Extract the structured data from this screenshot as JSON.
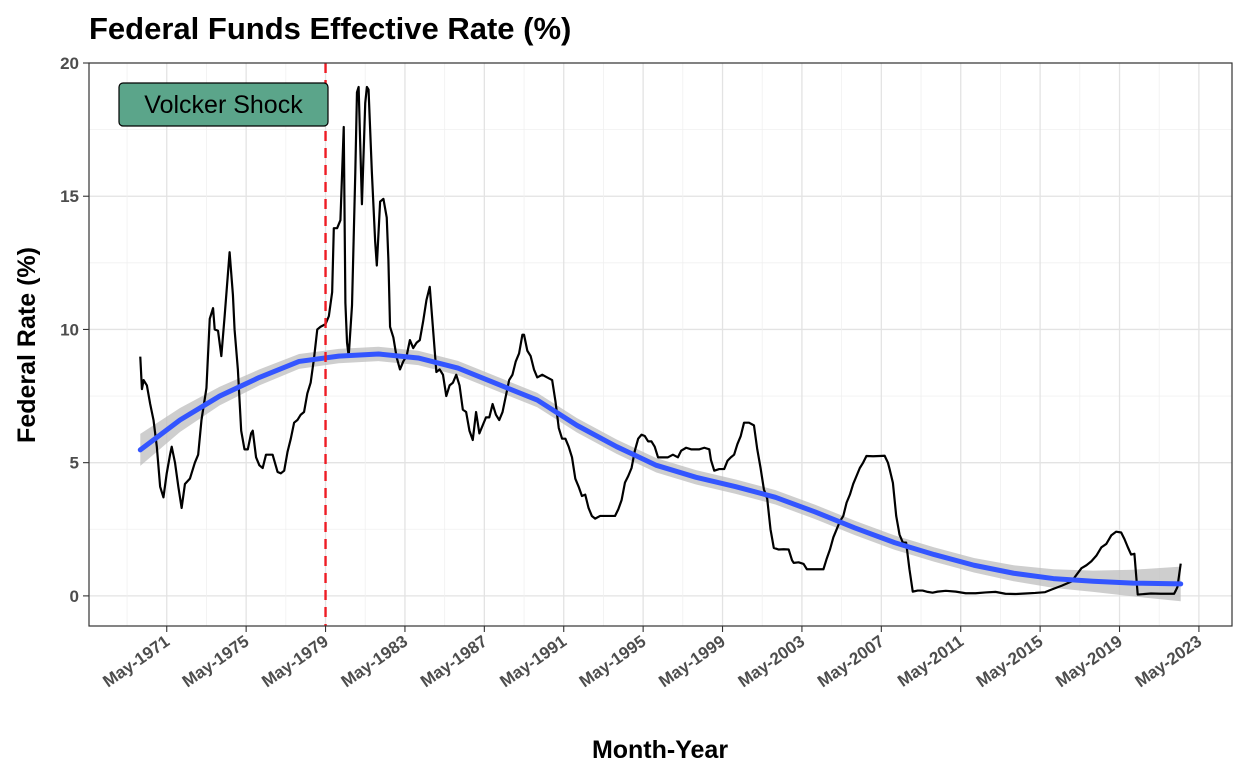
{
  "chart_data": {
    "type": "line",
    "title": "Federal Funds Effective Rate (%)",
    "x_label": "Month-Year",
    "y_label": "Federal Rate (%)",
    "xlim": [
      "1967-06",
      "2025-01"
    ],
    "xticks": [
      {
        "value": "1971-05",
        "label": "May-1971"
      },
      {
        "value": "1975-05",
        "label": "May-1975"
      },
      {
        "value": "1979-05",
        "label": "May-1979"
      },
      {
        "value": "1983-05",
        "label": "May-1983"
      },
      {
        "value": "1987-05",
        "label": "May-1987"
      },
      {
        "value": "1991-05",
        "label": "May-1991"
      },
      {
        "value": "1995-05",
        "label": "May-1995"
      },
      {
        "value": "1999-05",
        "label": "May-1999"
      },
      {
        "value": "2003-05",
        "label": "May-2003"
      },
      {
        "value": "2007-05",
        "label": "May-2007"
      },
      {
        "value": "2011-05",
        "label": "May-2011"
      },
      {
        "value": "2015-05",
        "label": "May-2015"
      },
      {
        "value": "2019-05",
        "label": "May-2019"
      },
      {
        "value": "2023-05",
        "label": "May-2023"
      }
    ],
    "ylim": [
      -1.13,
      20
    ],
    "yticks": [
      0,
      5,
      10,
      15,
      20
    ],
    "grid": true,
    "line": {
      "color": "#000000",
      "x": [
        "1970-01",
        "1970-02",
        "1970-03",
        "1970-05",
        "1970-07",
        "1970-09",
        "1970-11",
        "1971-01",
        "1971-03",
        "1971-05",
        "1971-07",
        "1971-08",
        "1971-10",
        "1971-12",
        "1972-02",
        "1972-04",
        "1972-07",
        "1972-10",
        "1972-12",
        "1973-02",
        "1973-05",
        "1973-07",
        "1973-09",
        "1973-10",
        "1973-12",
        "1974-02",
        "1974-04",
        "1974-07",
        "1974-09",
        "1974-10",
        "1974-12",
        "1975-02",
        "1975-04",
        "1975-06",
        "1975-08",
        "1975-09",
        "1975-11",
        "1976-01",
        "1976-03",
        "1976-05",
        "1976-07",
        "1976-09",
        "1976-12",
        "1977-02",
        "1977-04",
        "1977-06",
        "1977-08",
        "1977-10",
        "1977-12",
        "1978-02",
        "1978-04",
        "1978-06",
        "1978-08",
        "1978-10",
        "1978-12",
        "1979-02",
        "1979-05",
        "1979-07",
        "1979-09",
        "1979-10",
        "1979-12",
        "1980-02",
        "1980-04",
        "1980-05",
        "1980-06",
        "1980-07",
        "1980-09",
        "1980-11",
        "1980-12",
        "1981-01",
        "1981-03",
        "1981-05",
        "1981-06",
        "1981-07",
        "1981-09",
        "1981-11",
        "1981-12",
        "1982-02",
        "1982-04",
        "1982-06",
        "1982-07",
        "1982-08",
        "1982-10",
        "1982-12",
        "1983-02",
        "1983-04",
        "1983-06",
        "1983-08",
        "1983-10",
        "1983-12",
        "1984-02",
        "1984-04",
        "1984-06",
        "1984-08",
        "1984-10",
        "1984-12",
        "1985-02",
        "1985-04",
        "1985-06",
        "1985-08",
        "1985-10",
        "1985-12",
        "1986-02",
        "1986-04",
        "1986-06",
        "1986-08",
        "1986-10",
        "1986-12",
        "1987-02",
        "1987-04",
        "1987-06",
        "1987-08",
        "1987-10",
        "1987-12",
        "1988-02",
        "1988-04",
        "1988-06",
        "1988-08",
        "1988-10",
        "1988-12",
        "1989-02",
        "1989-04",
        "1989-05",
        "1989-07",
        "1989-09",
        "1989-11",
        "1990-01",
        "1990-04",
        "1990-07",
        "1990-10",
        "1990-12",
        "1991-02",
        "1991-04",
        "1991-06",
        "1991-08",
        "1991-10",
        "1991-12",
        "1992-02",
        "1992-04",
        "1992-06",
        "1992-08",
        "1992-10",
        "1992-12",
        "1993-03",
        "1993-06",
        "1993-09",
        "1993-12",
        "1994-02",
        "1994-04",
        "1994-06",
        "1994-08",
        "1994-10",
        "1994-12",
        "1995-02",
        "1995-04",
        "1995-06",
        "1995-08",
        "1995-10",
        "1995-12",
        "1996-02",
        "1996-05",
        "1996-08",
        "1996-11",
        "1997-02",
        "1997-04",
        "1997-07",
        "1997-10",
        "1997-12",
        "1998-03",
        "1998-06",
        "1998-09",
        "1998-10",
        "1998-12",
        "1999-03",
        "1999-06",
        "1999-08",
        "1999-10",
        "1999-12",
        "2000-02",
        "2000-04",
        "2000-06",
        "2000-09",
        "2000-12",
        "2001-02",
        "2001-04",
        "2001-06",
        "2001-08",
        "2001-10",
        "2001-12",
        "2002-03",
        "2002-06",
        "2002-09",
        "2002-11",
        "2002-12",
        "2003-03",
        "2003-06",
        "2003-08",
        "2003-12",
        "2004-03",
        "2004-06",
        "2004-08",
        "2004-10",
        "2004-12",
        "2005-02",
        "2005-04",
        "2005-06",
        "2005-08",
        "2005-10",
        "2005-12",
        "2006-02",
        "2006-04",
        "2006-06",
        "2006-08",
        "2006-12",
        "2007-04",
        "2007-07",
        "2007-09",
        "2007-10",
        "2007-12",
        "2008-02",
        "2008-04",
        "2008-06",
        "2008-08",
        "2008-10",
        "2008-12",
        "2009-03",
        "2009-06",
        "2009-09",
        "2009-12",
        "2010-03",
        "2010-08",
        "2011-02",
        "2011-08",
        "2012-02",
        "2012-08",
        "2013-02",
        "2013-08",
        "2014-02",
        "2014-08",
        "2015-02",
        "2015-08",
        "2015-12",
        "2016-06",
        "2016-12",
        "2017-03",
        "2017-06",
        "2017-09",
        "2017-12",
        "2018-03",
        "2018-06",
        "2018-09",
        "2018-12",
        "2019-03",
        "2019-06",
        "2019-08",
        "2019-10",
        "2019-12",
        "2020-02",
        "2020-04",
        "2020-12",
        "2021-06",
        "2021-12",
        "2022-02",
        "2022-03",
        "2022-04",
        "2022-05",
        "2022-06"
      ],
      "values": [
        8.98,
        7.76,
        8.1,
        7.9,
        7.2,
        6.6,
        5.6,
        4.1,
        3.7,
        4.6,
        5.3,
        5.6,
        5.0,
        4.1,
        3.3,
        4.2,
        4.4,
        5.0,
        5.3,
        6.6,
        7.8,
        10.4,
        10.8,
        10.0,
        9.95,
        9.0,
        10.5,
        12.9,
        11.3,
        10.0,
        8.5,
        6.2,
        5.5,
        5.5,
        6.1,
        6.2,
        5.2,
        4.9,
        4.8,
        5.3,
        5.3,
        5.3,
        4.65,
        4.6,
        4.7,
        5.4,
        5.9,
        6.5,
        6.6,
        6.8,
        6.9,
        7.6,
        8.0,
        8.9,
        10.0,
        10.1,
        10.2,
        10.5,
        11.4,
        13.8,
        13.8,
        14.1,
        17.6,
        11.0,
        9.5,
        9.0,
        10.9,
        15.9,
        18.9,
        19.1,
        14.7,
        18.5,
        19.1,
        19.0,
        15.9,
        13.3,
        12.4,
        14.8,
        14.9,
        14.2,
        12.6,
        10.1,
        9.7,
        8.95,
        8.5,
        8.8,
        9.0,
        9.6,
        9.3,
        9.5,
        9.6,
        10.3,
        11.1,
        11.6,
        10.0,
        8.4,
        8.5,
        8.3,
        7.5,
        7.9,
        8.0,
        8.3,
        7.9,
        6.99,
        6.9,
        6.2,
        5.85,
        6.9,
        6.1,
        6.4,
        6.7,
        6.7,
        7.2,
        6.8,
        6.6,
        6.9,
        7.5,
        8.1,
        8.3,
        8.8,
        9.1,
        9.8,
        9.8,
        9.2,
        9.0,
        8.5,
        8.2,
        8.3,
        8.2,
        8.1,
        7.3,
        6.3,
        5.9,
        5.9,
        5.6,
        5.2,
        4.4,
        4.1,
        3.75,
        3.8,
        3.3,
        3.0,
        2.9,
        3.0,
        3.0,
        3.0,
        3.0,
        3.25,
        3.6,
        4.25,
        4.5,
        4.8,
        5.45,
        5.9,
        6.05,
        6.0,
        5.8,
        5.8,
        5.6,
        5.2,
        5.2,
        5.2,
        5.3,
        5.2,
        5.45,
        5.56,
        5.5,
        5.5,
        5.5,
        5.56,
        5.5,
        5.1,
        4.7,
        4.76,
        4.76,
        5.07,
        5.2,
        5.3,
        5.7,
        6.0,
        6.5,
        6.5,
        6.4,
        5.5,
        4.8,
        4.0,
        3.65,
        2.5,
        1.8,
        1.74,
        1.75,
        1.74,
        1.34,
        1.24,
        1.26,
        1.2,
        1.0,
        1.0,
        1.0,
        1.0,
        1.4,
        1.75,
        2.2,
        2.5,
        2.8,
        3.0,
        3.5,
        3.8,
        4.2,
        4.5,
        4.8,
        5.0,
        5.25,
        5.24,
        5.25,
        5.26,
        5.0,
        4.76,
        4.24,
        3.0,
        2.3,
        2.0,
        2.0,
        1.0,
        0.16,
        0.2,
        0.2,
        0.15,
        0.12,
        0.16,
        0.19,
        0.16,
        0.1,
        0.1,
        0.13,
        0.15,
        0.08,
        0.07,
        0.09,
        0.11,
        0.14,
        0.24,
        0.38,
        0.54,
        0.79,
        1.04,
        1.15,
        1.3,
        1.51,
        1.82,
        1.95,
        2.27,
        2.41,
        2.38,
        2.13,
        1.83,
        1.55,
        1.58,
        0.05,
        0.09,
        0.08,
        0.08,
        0.08,
        0.2,
        0.33,
        0.77,
        1.21
      ]
    },
    "smooth": {
      "color": "#3355ff",
      "band_color": "#bdbdbd",
      "x": [
        "1970-01",
        "1972-01",
        "1974-01",
        "1976-01",
        "1978-01",
        "1980-01",
        "1982-01",
        "1984-01",
        "1986-01",
        "1988-01",
        "1990-01",
        "1992-01",
        "1994-01",
        "1996-01",
        "1998-01",
        "2000-01",
        "2002-01",
        "2004-01",
        "2006-01",
        "2008-01",
        "2010-01",
        "2012-01",
        "2014-01",
        "2016-01",
        "2018-01",
        "2020-01",
        "2022-06"
      ],
      "values": [
        5.48,
        6.6,
        7.5,
        8.2,
        8.8,
        9.0,
        9.08,
        8.93,
        8.55,
        7.95,
        7.35,
        6.4,
        5.6,
        4.9,
        4.45,
        4.1,
        3.7,
        3.15,
        2.55,
        2.0,
        1.55,
        1.15,
        0.85,
        0.65,
        0.55,
        0.48,
        0.45
      ],
      "lower": [
        4.88,
        6.15,
        7.15,
        7.9,
        8.52,
        8.73,
        8.81,
        8.66,
        8.28,
        7.68,
        7.08,
        6.13,
        5.33,
        4.63,
        4.18,
        3.83,
        3.43,
        2.88,
        2.28,
        1.73,
        1.28,
        0.88,
        0.55,
        0.3,
        0.15,
        -0.02,
        -0.2
      ],
      "upper": [
        6.08,
        7.05,
        7.85,
        8.5,
        9.08,
        9.27,
        9.35,
        9.2,
        8.82,
        8.22,
        7.62,
        6.67,
        5.87,
        5.17,
        4.72,
        4.37,
        3.97,
        3.42,
        2.82,
        2.27,
        1.82,
        1.42,
        1.15,
        1.0,
        0.95,
        0.98,
        1.1
      ]
    },
    "vline": {
      "x": "1979-05",
      "color": "#ee1c24"
    },
    "annotation": {
      "text": "Volcker Shock",
      "fill": "#5ba58a"
    }
  }
}
